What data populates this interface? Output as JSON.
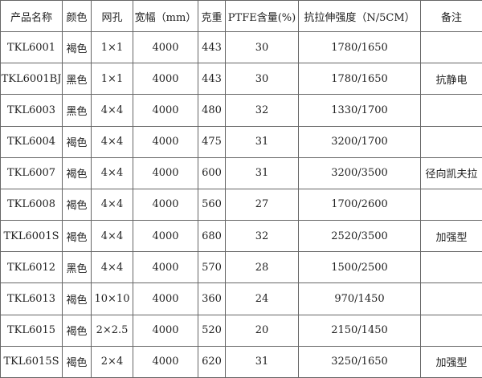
{
  "headers": [
    "产品名称",
    "颜色",
    "网孔",
    "宽幅（mm）",
    "克重",
    "PTFE含量(%)",
    "抗拉伸强度（N/5CM）",
    "备注"
  ],
  "rows": [
    [
      "TKL6001",
      "褐色",
      "1×1",
      "4000",
      "443",
      "30",
      "1780/1650",
      ""
    ],
    [
      "TKL6001BJ",
      "黑色",
      "1×1",
      "4000",
      "443",
      "30",
      "1780/1650",
      "抗静电"
    ],
    [
      "TKL6003",
      "黑色",
      "4×4",
      "4000",
      "480",
      "32",
      "1330/1700",
      ""
    ],
    [
      "TKL6004",
      "褐色",
      "4×4",
      "4000",
      "475",
      "31",
      "3200/1700",
      ""
    ],
    [
      "TKL6007",
      "褐色",
      "4×4",
      "4000",
      "600",
      "31",
      "3200/3500",
      "径向凯夫拉"
    ],
    [
      "TKL6008",
      "褐色",
      "4×4",
      "4000",
      "560",
      "27",
      "1700/2600",
      ""
    ],
    [
      "TKL6001S",
      "褐色",
      "4×4",
      "4000",
      "680",
      "32",
      "2520/3500",
      "加强型"
    ],
    [
      "TKL6012",
      "黑色",
      "4×4",
      "4000",
      "570",
      "28",
      "1500/2500",
      ""
    ],
    [
      "TKL6013",
      "褐色",
      "10×10",
      "4000",
      "360",
      "24",
      "970/1450",
      ""
    ],
    [
      "TKL6015",
      "褐色",
      "2×2.5",
      "4000",
      "520",
      "20",
      "2150/1450",
      ""
    ],
    [
      "TKL6015S",
      "褐色",
      "2×4",
      "4000",
      "620",
      "31",
      "3250/1650",
      "加强型"
    ]
  ]
}
